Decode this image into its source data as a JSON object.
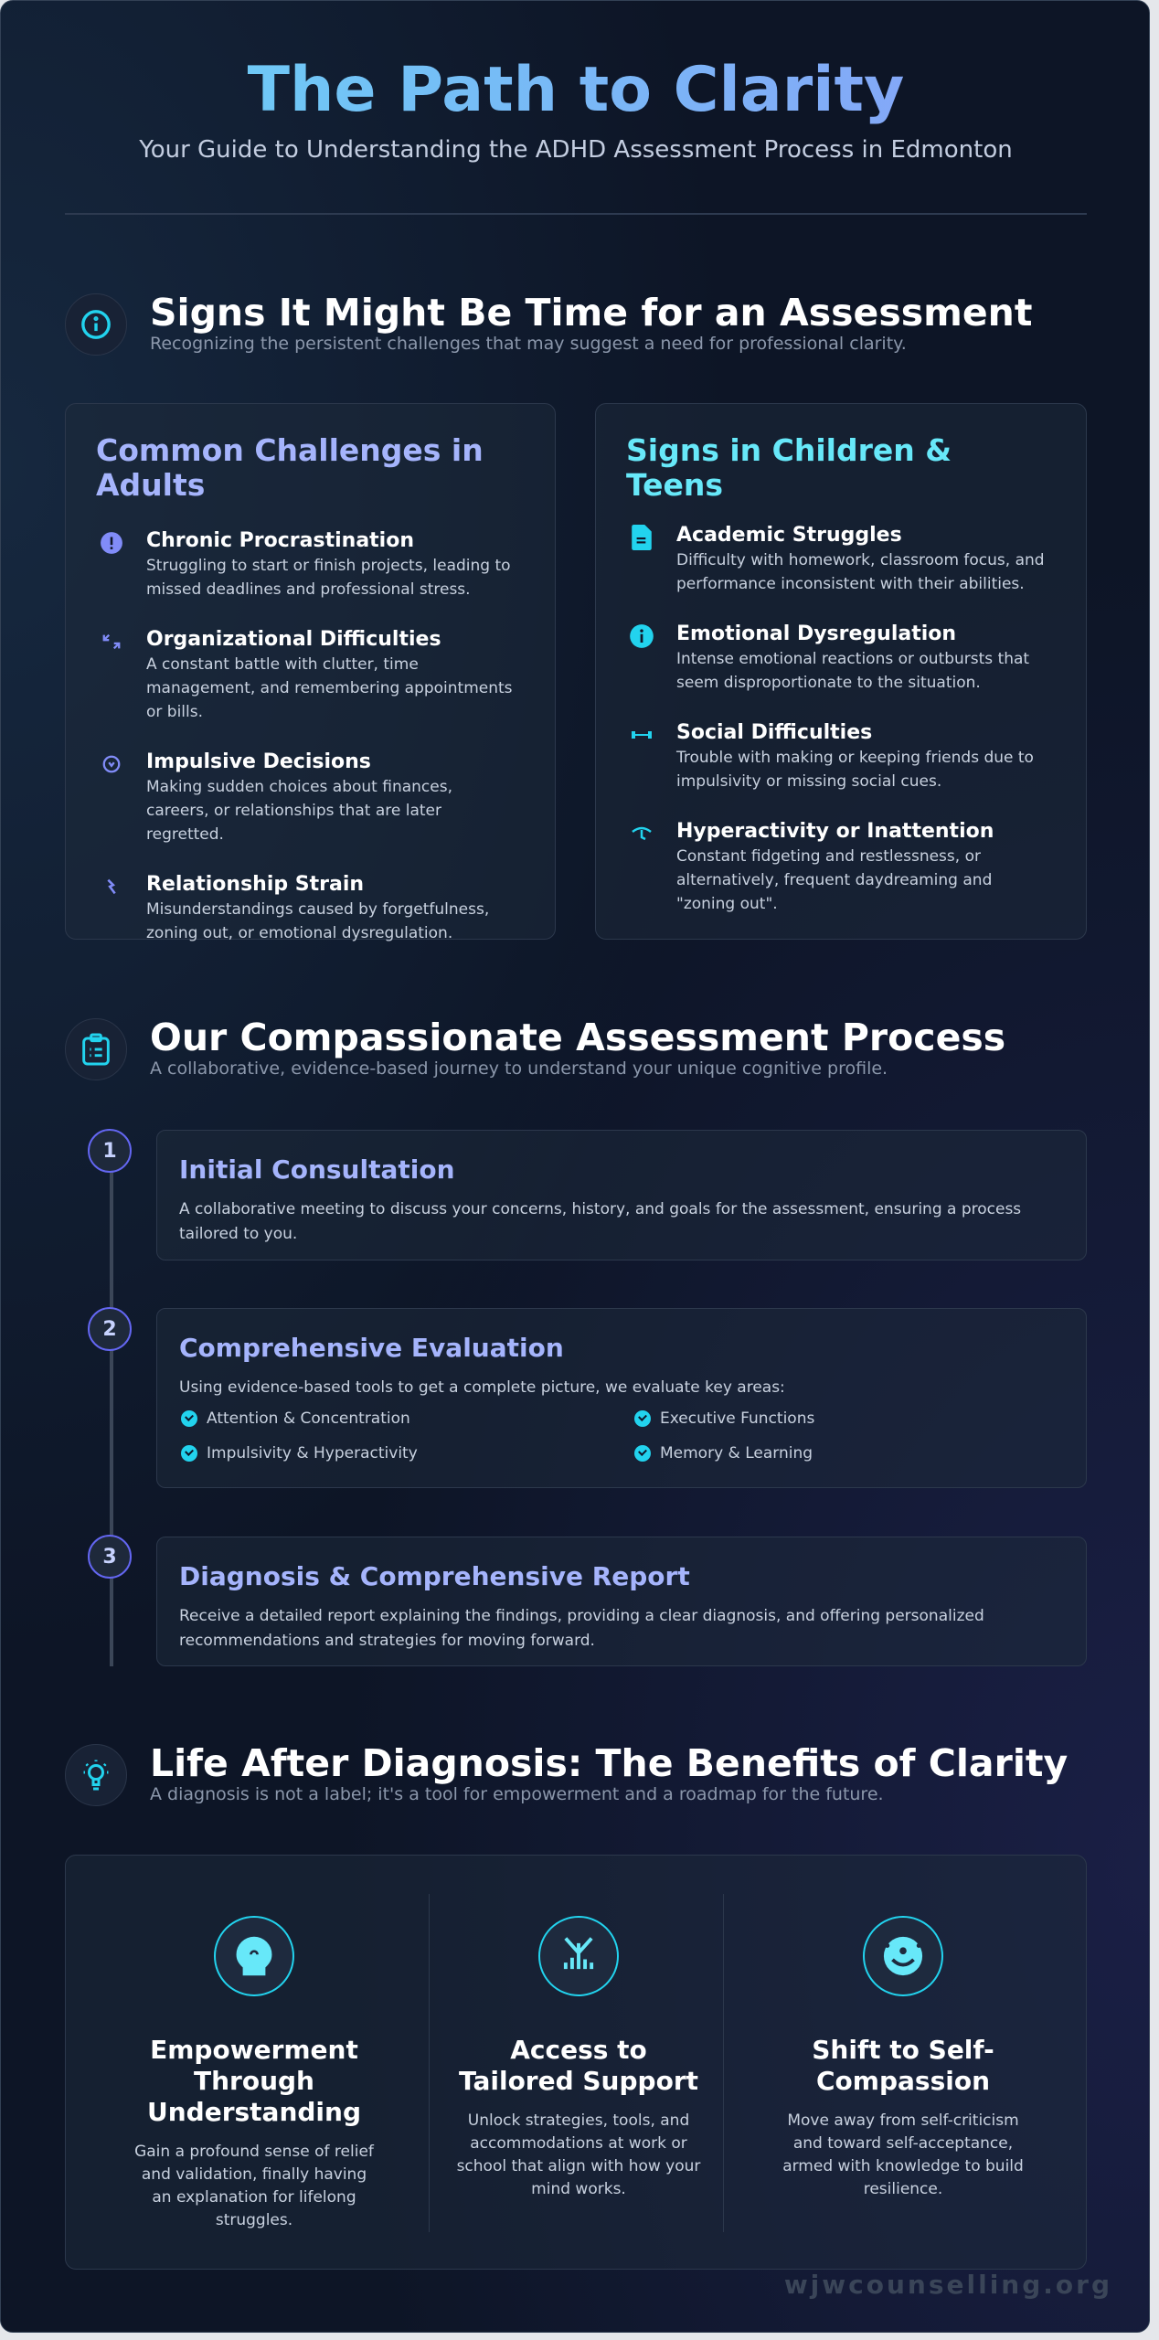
{
  "header": {
    "title": "The Path to Clarity",
    "subtitle": "Your Guide to Understanding the ADHD Assessment Process in Edmonton"
  },
  "signs": {
    "icon": "info-circle-icon",
    "title": "Signs It Might Be Time for an Assessment",
    "subtitle": "Recognizing the persistent challenges that may suggest a need for professional clarity.",
    "adults": {
      "title": "Common Challenges in Adults",
      "items": [
        {
          "icon": "exclamation-circle-icon",
          "title": "Chronic Procrastination",
          "desc": "Struggling to start or finish projects, leading to missed deadlines and professional stress."
        },
        {
          "icon": "arrows-shuffle-icon",
          "title": "Organizational Difficulties",
          "desc": "A constant battle with clutter, time management, and remembering appointments or bills."
        },
        {
          "icon": "circle-arrow-icon",
          "title": "Impulsive Decisions",
          "desc": "Making sudden choices about finances, careers, or relationships that are later regretted."
        },
        {
          "icon": "broken-link-icon",
          "title": "Relationship Strain",
          "desc": "Misunderstandings caused by forgetfulness, zoning out, or emotional dysregulation."
        }
      ]
    },
    "children": {
      "title": "Signs in Children & Teens",
      "items": [
        {
          "icon": "document-icon",
          "title": "Academic Struggles",
          "desc": "Difficulty with homework, classroom focus, and performance inconsistent with their abilities."
        },
        {
          "icon": "info-icon",
          "title": "Emotional Dysregulation",
          "desc": "Intense emotional reactions or outbursts that seem disproportionate to the situation."
        },
        {
          "icon": "people-icon",
          "title": "Social Difficulties",
          "desc": "Trouble with making or keeping friends due to impulsivity or missing social cues."
        },
        {
          "icon": "activity-icon",
          "title": "Hyperactivity or Inattention",
          "desc": "Constant fidgeting and restlessness, or alternatively, frequent daydreaming and \"zoning out\"."
        }
      ]
    }
  },
  "process": {
    "icon": "clipboard-list-icon",
    "title": "Our Compassionate Assessment Process",
    "subtitle": "A collaborative, evidence-based journey to understand your unique cognitive profile.",
    "steps": [
      {
        "number": "1",
        "title": "Initial Consultation",
        "desc": "A collaborative meeting to discuss your concerns, history, and goals for the assessment, ensuring a process tailored to you."
      },
      {
        "number": "2",
        "title": "Comprehensive Evaluation",
        "desc": "Using evidence-based tools to get a complete picture, we evaluate key areas:",
        "areas": [
          "Attention & Concentration",
          "Executive Functions",
          "Impulsivity & Hyperactivity",
          "Memory & Learning"
        ]
      },
      {
        "number": "3",
        "title": "Diagnosis & Comprehensive Report",
        "desc": "Receive a detailed report explaining the findings, providing a clear diagnosis, and offering personalized recommendations and strategies for moving forward."
      }
    ]
  },
  "benefits": {
    "icon": "lightbulb-icon",
    "title": "Life After Diagnosis: The Benefits of Clarity",
    "subtitle": "A diagnosis is not a label; it's a tool for empowerment and a roadmap for the future.",
    "items": [
      {
        "icon": "head-icon",
        "title": "Empowerment Through Understanding",
        "desc": "Gain a profound sense of relief and validation, finally having an explanation for lifelong struggles."
      },
      {
        "icon": "tools-icon",
        "title": "Access to Tailored Support",
        "desc": "Unlock strategies, tools, and accommodations at work or school that align with how your mind works."
      },
      {
        "icon": "smile-icon",
        "title": "Shift to Self-Compassion",
        "desc": "Move away from self-criticism and toward self-acceptance, armed with knowledge to build resilience."
      }
    ]
  },
  "footer": {
    "watermark": "wjwcounselling.org"
  },
  "colors": {
    "accent_cyan": "#22d3ee",
    "accent_indigo": "#a5b4fc",
    "background": "#0d1526"
  }
}
